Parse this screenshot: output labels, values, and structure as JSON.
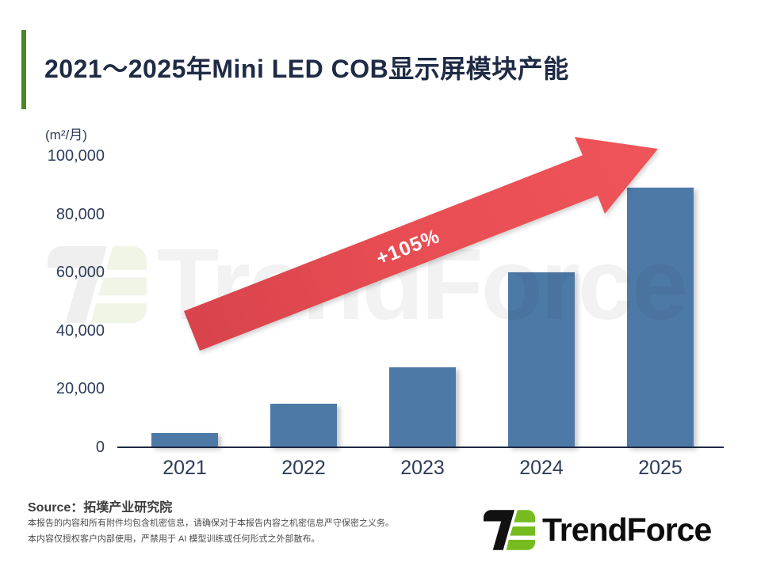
{
  "header": {
    "title": "2021～2025年Mini LED COB显示屏模块产能",
    "accent_color": "#4a8527",
    "title_color": "#1f2b45"
  },
  "chart_data": {
    "type": "bar",
    "title": "2021～2025年Mini LED COB显示屏模块产能",
    "unit": "(m²/月)",
    "categories": [
      "2021",
      "2022",
      "2023",
      "2024",
      "2025"
    ],
    "values": [
      5000,
      15000,
      27500,
      60000,
      89000
    ],
    "ylim": [
      0,
      100000
    ],
    "ytick_values": [
      0,
      20000,
      40000,
      60000,
      80000,
      100000
    ],
    "ytick_labels": [
      "0",
      "20,000",
      "40,000",
      "60,000",
      "80,000",
      "100,000"
    ],
    "bar_color": "#4d79a7",
    "axis_text_color": "#2e3d59",
    "grid": false,
    "legend": "none",
    "annotation": {
      "label": "+105%",
      "arrow_color": "#e2444c"
    }
  },
  "watermark": {
    "text": "TrendForce"
  },
  "footer": {
    "source_label": "Source",
    "source_value": "：拓墣产业研究院",
    "disclaimer_line1": "本报告的内容和所有附件均包含机密信息，请确保对于本报告内容之机密信息严守保密之义务。",
    "disclaimer_line2": "本内容仅授权客户内部使用，严禁用于 AI 模型训练或任何形式之外部散布。",
    "logo_text": "TrendForce",
    "logo_green": "#76bc21",
    "logo_black": "#111111"
  }
}
